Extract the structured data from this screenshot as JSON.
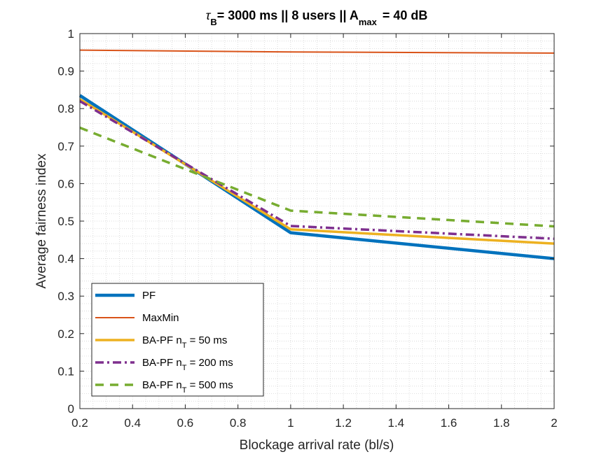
{
  "chart_data": {
    "type": "line",
    "title": {
      "tau": "τ",
      "tau_sub": "B",
      "part1": "= 3000 ms || 8 users || A",
      "a_sub": "max",
      "part2": "= 40 dB"
    },
    "xlabel": "Blockage arrival rate (bl/s)",
    "ylabel": "Average fairness index",
    "xlim": [
      0.2,
      2
    ],
    "ylim": [
      0,
      1
    ],
    "xticks": [
      "0.2",
      "0.4",
      "0.6",
      "0.8",
      "1",
      "1.2",
      "1.4",
      "1.6",
      "1.8",
      "2"
    ],
    "yticks": [
      "0",
      "0.1",
      "0.2",
      "0.3",
      "0.4",
      "0.5",
      "0.6",
      "0.7",
      "0.8",
      "0.9",
      "1"
    ],
    "grid": "minor-dotted",
    "legend_position": "bottom-left",
    "series": [
      {
        "name": "PF",
        "legend": {
          "main": "PF",
          "sub": "",
          "tail": ""
        },
        "color": "#0072BD",
        "style": "solid-thick",
        "x": [
          0.2,
          1,
          2
        ],
        "y": [
          0.835,
          0.469,
          0.4
        ]
      },
      {
        "name": "MaxMin",
        "legend": {
          "main": "MaxMin",
          "sub": "",
          "tail": ""
        },
        "color": "#D95319",
        "style": "solid-thin",
        "x": [
          0.2,
          1,
          2
        ],
        "y": [
          0.956,
          0.951,
          0.948
        ]
      },
      {
        "name": "BA-PF nT = 50 ms",
        "legend": {
          "main": "BA-PF n",
          "sub": "T",
          "tail": " = 50 ms"
        },
        "color": "#EDB120",
        "style": "solid",
        "x": [
          0.2,
          1,
          2
        ],
        "y": [
          0.825,
          0.478,
          0.44
        ]
      },
      {
        "name": "BA-PF nT = 200 ms",
        "legend": {
          "main": "BA-PF n",
          "sub": "T",
          "tail": " = 200 ms"
        },
        "color": "#7E2F8E",
        "style": "dashdot",
        "x": [
          0.2,
          1,
          2
        ],
        "y": [
          0.82,
          0.487,
          0.453
        ]
      },
      {
        "name": "BA-PF nT = 500 ms",
        "legend": {
          "main": "BA-PF n",
          "sub": "T",
          "tail": " = 500 ms"
        },
        "color": "#77AC30",
        "style": "dashed",
        "x": [
          0.2,
          1,
          2
        ],
        "y": [
          0.749,
          0.528,
          0.486
        ]
      }
    ]
  }
}
